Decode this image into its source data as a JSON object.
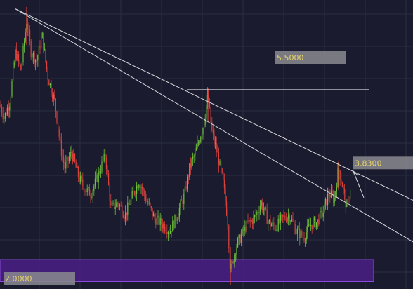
{
  "chart_data": {
    "type": "candlestick",
    "grid": true,
    "colors": {
      "background": "#1a1b2e",
      "grid": "#2a2c42",
      "up_candle": "#6fc23a",
      "down_candle": "#d9413c",
      "trendline": "#d8d8dc",
      "label_box": "#8a8a8f",
      "label_text": "#e8d36a",
      "support_zone": "#4a1f86",
      "support_zone_border": "#8a4ad6"
    },
    "y_range": [
      1.9,
      6.3
    ],
    "x_range": [
      0,
      588
    ],
    "price_labels": [
      {
        "text": "5.5000",
        "value": 5.5
      },
      {
        "text": "3.8300",
        "value": 3.83
      },
      {
        "text": "2.0000",
        "value": 2.0
      }
    ],
    "support_zone": {
      "low": 1.95,
      "high": 2.3
    },
    "horizontal_line": {
      "value": 4.99,
      "x_start": 266,
      "x_end": 525
    },
    "trendlines": [
      {
        "x1": 22,
        "y1": 6.27,
        "x2": 588,
        "y2": 3.24
      },
      {
        "x1": 22,
        "y1": 6.27,
        "x2": 588,
        "y2": 2.58
      }
    ],
    "arrow": {
      "x1": 518,
      "y1": 3.28,
      "x2": 503,
      "y2": 3.7
    },
    "swings": [
      [
        0,
        4.75
      ],
      [
        6,
        4.55
      ],
      [
        14,
        4.8
      ],
      [
        22,
        5.6
      ],
      [
        30,
        5.3
      ],
      [
        38,
        6.1
      ],
      [
        44,
        5.6
      ],
      [
        52,
        5.45
      ],
      [
        60,
        5.85
      ],
      [
        68,
        5.2
      ],
      [
        78,
        4.8
      ],
      [
        86,
        4.1
      ],
      [
        92,
        3.75
      ],
      [
        102,
        4.0
      ],
      [
        112,
        3.6
      ],
      [
        122,
        3.4
      ],
      [
        130,
        3.35
      ],
      [
        140,
        3.65
      ],
      [
        150,
        3.95
      ],
      [
        158,
        3.1
      ],
      [
        168,
        3.2
      ],
      [
        178,
        3.0
      ],
      [
        188,
        3.3
      ],
      [
        198,
        3.55
      ],
      [
        210,
        3.2
      ],
      [
        220,
        2.95
      ],
      [
        232,
        2.85
      ],
      [
        242,
        2.75
      ],
      [
        252,
        3.0
      ],
      [
        262,
        3.3
      ],
      [
        270,
        3.75
      ],
      [
        280,
        4.05
      ],
      [
        290,
        4.45
      ],
      [
        296,
        4.9
      ],
      [
        302,
        4.3
      ],
      [
        310,
        3.95
      ],
      [
        318,
        3.5
      ],
      [
        324,
        2.95
      ],
      [
        328,
        2.1
      ],
      [
        336,
        2.5
      ],
      [
        344,
        2.7
      ],
      [
        352,
        2.85
      ],
      [
        362,
        2.95
      ],
      [
        372,
        3.2
      ],
      [
        382,
        2.9
      ],
      [
        392,
        2.8
      ],
      [
        402,
        2.95
      ],
      [
        412,
        3.0
      ],
      [
        422,
        2.75
      ],
      [
        432,
        2.65
      ],
      [
        442,
        2.85
      ],
      [
        452,
        2.9
      ],
      [
        460,
        3.05
      ],
      [
        468,
        3.35
      ],
      [
        476,
        3.25
      ],
      [
        482,
        3.75
      ],
      [
        488,
        3.45
      ],
      [
        494,
        3.1
      ],
      [
        500,
        3.55
      ]
    ]
  }
}
